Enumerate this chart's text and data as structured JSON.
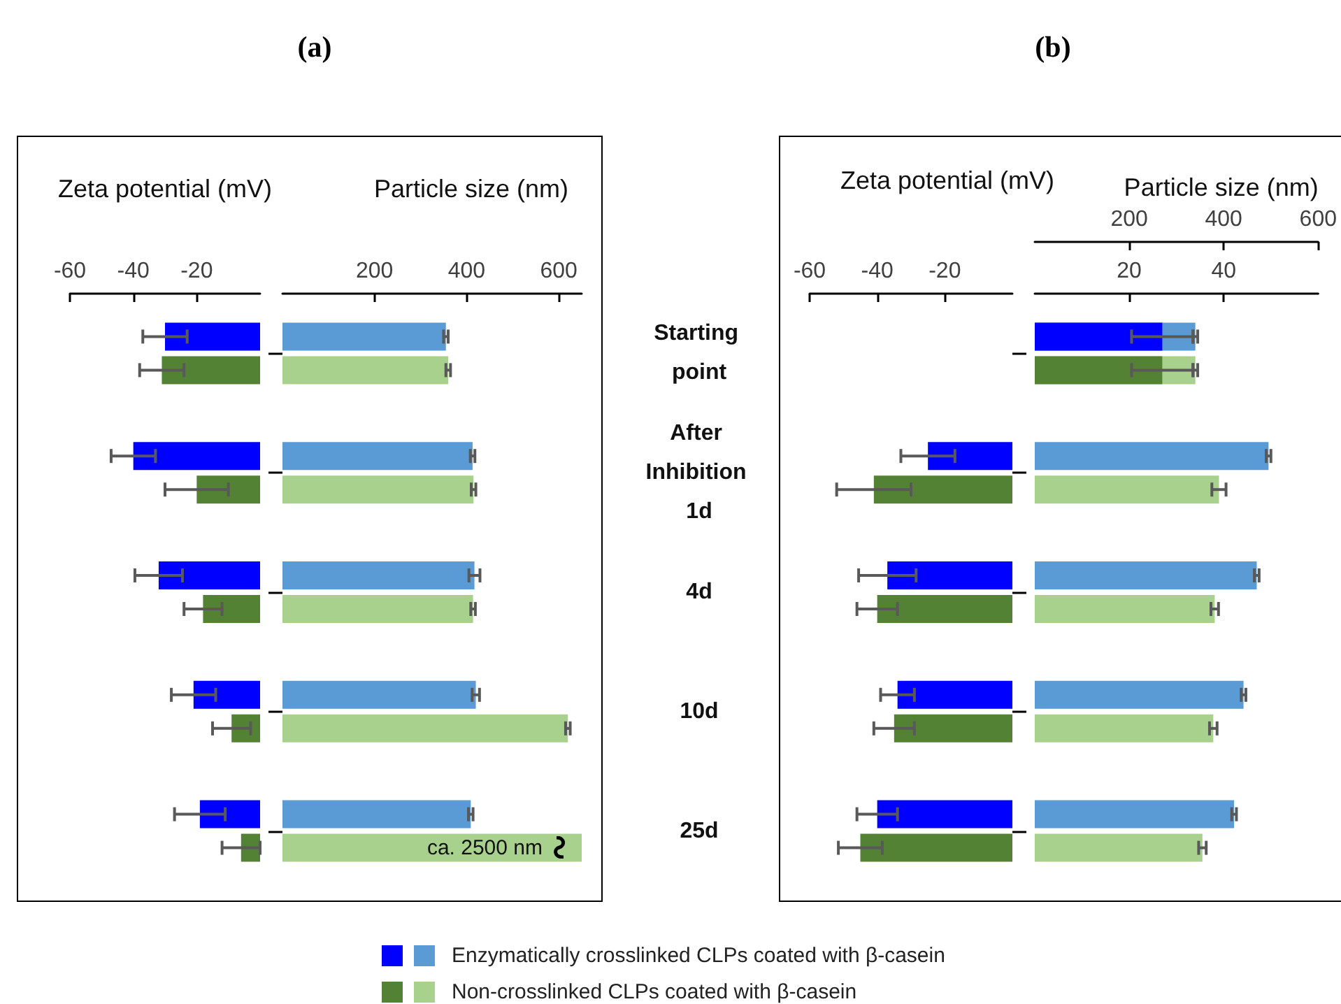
{
  "chart_data": [
    {
      "type": "bar",
      "orientation": "horizontal",
      "xlabel": "Zeta potential (mV)",
      "categories": [
        "Starting point",
        "After Inhibition 1d",
        "4d",
        "10d",
        "25d"
      ],
      "xlim": [
        -60,
        0
      ],
      "xticks": [
        -60,
        -40,
        -20
      ],
      "tick_labels": "x",
      "legend": "bottom",
      "series": [
        {
          "name": "Enzymatically crosslinked CLPs coated with β-casein",
          "color": "#0000ff",
          "values": [
            -30,
            -40,
            -32,
            -21,
            -19
          ],
          "errors": [
            7,
            7,
            7.5,
            7,
            8
          ]
        },
        {
          "name": "Non-crosslinked CLPs coated with β-casein",
          "color": "#548235",
          "values": [
            -31,
            -20,
            -18,
            -9,
            -6
          ],
          "errors": [
            7,
            10,
            6,
            6,
            6
          ]
        }
      ]
    },
    {
      "type": "bar",
      "orientation": "horizontal",
      "title": "(a)",
      "xlabel": "Particle size (nm)",
      "categories": [
        "Starting point",
        "After Inhibition 1d",
        "4d",
        "10d",
        "25d"
      ],
      "xlim": [
        0,
        650
      ],
      "xticks": [
        200,
        400,
        600
      ],
      "annotations": [
        {
          "text": "ca. 2500 nm",
          "x": 650,
          "y": "25d"
        }
      ],
      "series": [
        {
          "color": "#5b9bd5",
          "values": [
            355,
            413,
            417,
            420,
            409
          ],
          "errors": [
            5,
            5,
            12,
            8,
            5
          ]
        },
        {
          "color": "#a9d18e",
          "values": [
            360,
            415,
            414,
            620,
            650
          ],
          "errors": [
            5,
            5,
            5,
            5,
            null
          ]
        }
      ]
    },
    {
      "type": "bar",
      "orientation": "horizontal",
      "xlabel": "Zeta potential (mV)",
      "categories": [
        "Starting point",
        "After Inhibition 1d",
        "4d",
        "10d",
        "25d"
      ],
      "xlim": [
        -60,
        0
      ],
      "xticks": [
        -60,
        -40,
        -20
      ],
      "tick_labels": "x",
      "series": [
        {
          "color": "#0000ff",
          "values": [
            null,
            -25,
            -37,
            -34,
            -40
          ],
          "errors": [
            null,
            8,
            8.5,
            5,
            6
          ]
        },
        {
          "color": "#548235",
          "values": [
            null,
            -41,
            -40,
            -35,
            -45
          ],
          "errors": [
            null,
            11,
            6,
            6,
            6.5
          ]
        }
      ]
    },
    {
      "type": "bar",
      "orientation": "horizontal",
      "title": "(b)",
      "x2label": "Particle size (nm)",
      "categories": [
        "Starting point",
        "After Inhibition 1d",
        "4d",
        "10d",
        "25d"
      ],
      "xlim": [
        0,
        60
      ],
      "xticks": [
        20,
        40
      ],
      "x2lim": [
        0,
        600
      ],
      "x2ticks": [
        200,
        400,
        600
      ],
      "tick_labels": "x",
      "series": [
        {
          "color": "#5b9bd5",
          "axis": "x2",
          "values": [
            340,
            495,
            470,
            442,
            422
          ],
          "errors": [
            5,
            5,
            5,
            5,
            5
          ]
        },
        {
          "color": "#a9d18e",
          "axis": "x2",
          "values": [
            340,
            390,
            381,
            378,
            355
          ],
          "errors": [
            5,
            15,
            8,
            8,
            8
          ]
        },
        {
          "color": "#0000ff",
          "values": [
            27,
            null,
            null,
            null,
            null
          ],
          "errors": [
            6.5,
            null,
            null,
            null,
            null
          ]
        },
        {
          "color": "#548235",
          "values": [
            27,
            null,
            null,
            null,
            null
          ],
          "errors": [
            6.5,
            null,
            null,
            null,
            null
          ]
        }
      ]
    }
  ]
}
